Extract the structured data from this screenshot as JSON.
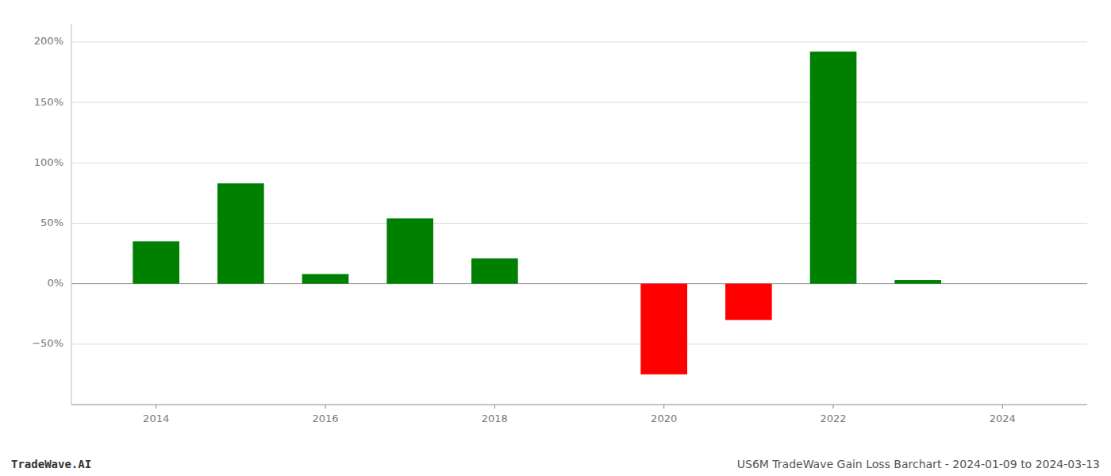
{
  "chart_data": {
    "type": "bar",
    "x": [
      2014,
      2015,
      2016,
      2017,
      2018,
      2019,
      2020,
      2021,
      2022,
      2023,
      2024
    ],
    "values": [
      35.0,
      83.0,
      8.0,
      54.0,
      21.0,
      null,
      -75.0,
      -30.0,
      192.0,
      3.0,
      null
    ],
    "colors": [
      "#008000",
      "#008000",
      "#008000",
      "#008000",
      "#008000",
      null,
      "#ff0000",
      "#ff0000",
      "#008000",
      "#008000",
      null
    ],
    "xlim": [
      2013,
      2025
    ],
    "xticks": [
      2014,
      2016,
      2018,
      2020,
      2022,
      2024
    ],
    "ylim": [
      -100,
      215
    ],
    "yticks": [
      {
        "value": -50,
        "label": "−50%"
      },
      {
        "value": 0,
        "label": "0%"
      },
      {
        "value": 50,
        "label": "50%"
      },
      {
        "value": 100,
        "label": "100%"
      },
      {
        "value": 150,
        "label": "150%"
      },
      {
        "value": 200,
        "label": "200%"
      }
    ],
    "grid": true,
    "annotations": [
      "TradeWave.AI",
      "US6M TradeWave Gain Loss Barchart - 2024-01-09 to 2024-03-13"
    ]
  }
}
